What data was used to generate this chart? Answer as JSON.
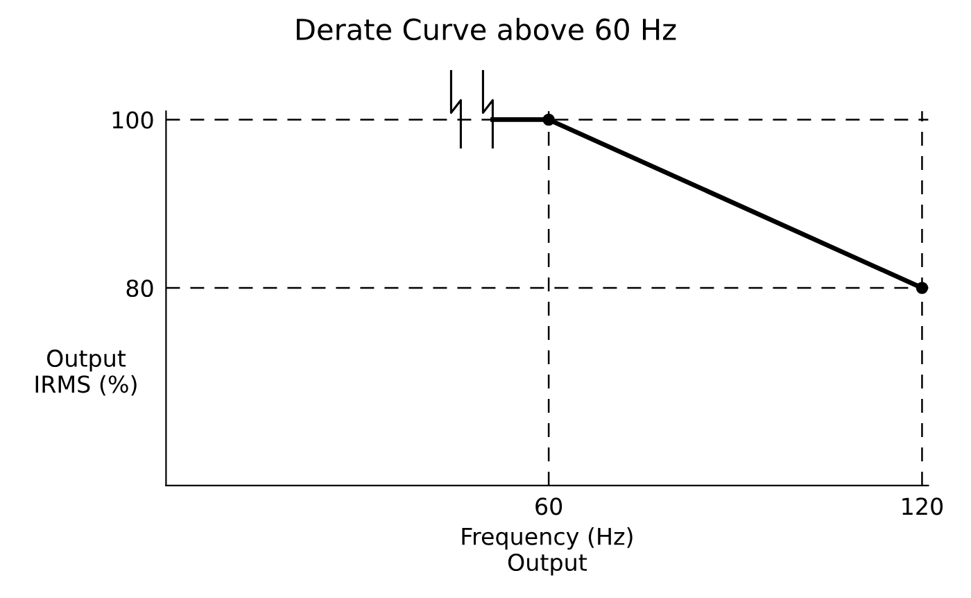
{
  "chart_data": {
    "type": "line",
    "title": "Derate Curve above 60 Hz",
    "xlabel": "Frequency (Hz)\nOutput",
    "ylabel": "Output\nIRMS (%)",
    "series": [
      {
        "type": "line",
        "color": "#000000",
        "x": [
          51,
          60,
          120
        ],
        "values": [
          100,
          100,
          80
        ],
        "marker": "none",
        "line_style": "solid"
      },
      {
        "type": "scatter",
        "color": "#000000",
        "x": [
          60,
          120
        ],
        "values": [
          100,
          80
        ],
        "marker": "circle"
      }
    ],
    "xlim": [
      -1.5,
      121
    ],
    "ylim": [
      56.5,
      101
    ],
    "xticks": [
      60,
      120
    ],
    "yticks": [
      80,
      100
    ],
    "grid": false,
    "legend": false,
    "ref_lines": [
      {
        "axis": "y",
        "value": 100,
        "label": null,
        "color": "#000000",
        "line_style": "dashed"
      },
      {
        "axis": "y",
        "value": 80,
        "label": null,
        "color": "#000000",
        "line_style": "dashed"
      },
      {
        "axis": "x",
        "value": 60,
        "label": null,
        "color": "#000000",
        "line_style": "dashed"
      },
      {
        "axis": "x",
        "value": 120,
        "label": null,
        "color": "#000000",
        "line_style": "dashed"
      }
    ]
  }
}
